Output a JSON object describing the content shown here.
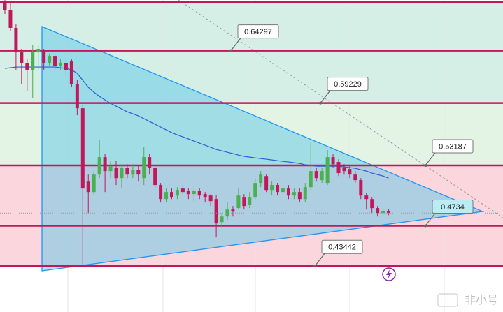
{
  "chart_data": {
    "type": "candlestick",
    "ylim": [
      0.39,
      0.692
    ],
    "up_color": "#4caf50",
    "down_color": "#c2185b",
    "level_color": "#c2185b",
    "ma_color": "#2f5fd0",
    "top_line": 0.69,
    "levels": [
      0.64297,
      0.59229,
      0.53187,
      0.4734,
      0.43442
    ],
    "open": [
      0.6886,
      0.6819,
      0.665,
      0.6413,
      0.6312,
      0.6244,
      0.6413,
      0.6433,
      0.6312,
      0.6379,
      0.6278,
      0.6312,
      0.6325,
      0.6109,
      0.5872,
      0.5162,
      0.5061,
      0.523,
      0.5399,
      0.5264,
      0.5298,
      0.5196,
      0.5298,
      0.523,
      0.5277,
      0.5196,
      0.5399,
      0.5298,
      0.5129,
      0.4993,
      0.5061,
      0.5027,
      0.5095,
      0.5074,
      0.5041,
      0.5074,
      0.5041,
      0.5027,
      0.4993,
      0.477,
      0.4824,
      0.4892,
      0.4906,
      0.5014,
      0.4939,
      0.5014,
      0.5149,
      0.5216,
      0.5081,
      0.5129,
      0.5061,
      0.5095,
      0.5027,
      0.5061,
      0.4993,
      0.5108,
      0.5264,
      0.5176,
      0.5149,
      0.5399,
      0.5352,
      0.5298,
      0.5284,
      0.523,
      0.5176,
      0.5027,
      0.4993,
      0.4906,
      0.4858,
      0.4878
    ],
    "high": [
      0.692,
      0.6886,
      0.6683,
      0.6447,
      0.6345,
      0.6481,
      0.6481,
      0.6447,
      0.6393,
      0.6393,
      0.6345,
      0.6366,
      0.6345,
      0.6143,
      0.5906,
      0.523,
      0.5264,
      0.5568,
      0.5433,
      0.5365,
      0.5365,
      0.5331,
      0.5331,
      0.5331,
      0.5311,
      0.55,
      0.5433,
      0.5311,
      0.5149,
      0.5095,
      0.5095,
      0.5108,
      0.5129,
      0.5095,
      0.5095,
      0.5095,
      0.5061,
      0.5041,
      0.5027,
      0.4858,
      0.496,
      0.4926,
      0.5095,
      0.5041,
      0.5061,
      0.5196,
      0.5264,
      0.523,
      0.5162,
      0.5149,
      0.5129,
      0.5129,
      0.5095,
      0.5095,
      0.5149,
      0.5534,
      0.5298,
      0.5298,
      0.5467,
      0.5433,
      0.5379,
      0.5331,
      0.5311,
      0.5264,
      0.5196,
      0.5054,
      0.5014,
      0.4926,
      0.4906,
      0.4892
    ],
    "low": [
      0.6785,
      0.6616,
      0.6244,
      0.6109,
      0.6041,
      0.5974,
      0.6244,
      0.6244,
      0.6278,
      0.6244,
      0.6244,
      0.6176,
      0.6075,
      0.5805,
      0.4351,
      0.4858,
      0.5027,
      0.5196,
      0.5061,
      0.5196,
      0.5129,
      0.5095,
      0.5196,
      0.5196,
      0.5162,
      0.5129,
      0.523,
      0.5095,
      0.496,
      0.496,
      0.4993,
      0.4993,
      0.5027,
      0.4993,
      0.496,
      0.4993,
      0.496,
      0.4926,
      0.4622,
      0.4723,
      0.4791,
      0.4824,
      0.4892,
      0.4892,
      0.4906,
      0.4993,
      0.5108,
      0.5061,
      0.5027,
      0.5027,
      0.5027,
      0.4993,
      0.4993,
      0.496,
      0.496,
      0.5081,
      0.5162,
      0.5149,
      0.5129,
      0.5298,
      0.5216,
      0.523,
      0.5196,
      0.5149,
      0.4993,
      0.4892,
      0.4858,
      0.4824,
      0.4838,
      0.4838
    ],
    "close": [
      0.6819,
      0.665,
      0.6413,
      0.6312,
      0.6244,
      0.6413,
      0.6447,
      0.6312,
      0.6379,
      0.6278,
      0.6312,
      0.6244,
      0.6109,
      0.5872,
      0.5095,
      0.5061,
      0.523,
      0.5399,
      0.5264,
      0.5311,
      0.5196,
      0.5298,
      0.523,
      0.5277,
      0.523,
      0.5399,
      0.5298,
      0.5129,
      0.4993,
      0.5061,
      0.5014,
      0.5081,
      0.5061,
      0.5041,
      0.5074,
      0.5027,
      0.5014,
      0.4973,
      0.4757,
      0.4824,
      0.4892,
      0.4872,
      0.5027,
      0.4926,
      0.5014,
      0.5149,
      0.523,
      0.5081,
      0.5129,
      0.5061,
      0.5095,
      0.5027,
      0.5061,
      0.4993,
      0.5108,
      0.5264,
      0.5196,
      0.5264,
      0.5399,
      0.5331,
      0.5244,
      0.5264,
      0.523,
      0.5176,
      0.5027,
      0.4993,
      0.4906,
      0.4858,
      0.4878,
      0.4858
    ],
    "ma": [
      0.6258,
      0.6264,
      0.6271,
      0.6271,
      0.6271,
      0.6271,
      0.6271,
      0.6271,
      0.6271,
      0.6271,
      0.6264,
      0.6258,
      0.6244,
      0.621,
      0.6143,
      0.6075,
      0.6028,
      0.5987,
      0.5953,
      0.592,
      0.5892,
      0.5865,
      0.5838,
      0.5818,
      0.5798,
      0.5771,
      0.5744,
      0.5717,
      0.569,
      0.5663,
      0.5636,
      0.5615,
      0.5595,
      0.5575,
      0.5554,
      0.5534,
      0.5514,
      0.5494,
      0.5473,
      0.546,
      0.5446,
      0.5433,
      0.5419,
      0.5406,
      0.5399,
      0.5392,
      0.5385,
      0.5379,
      0.5372,
      0.5365,
      0.5358,
      0.5352,
      0.5345,
      0.5338,
      0.5325,
      0.5318,
      0.5311,
      0.5311,
      0.5311,
      0.5311,
      0.5311,
      0.5304,
      0.5298,
      0.5291,
      0.5277,
      0.5264,
      0.5244,
      0.523,
      0.5216,
      0.5196
    ],
    "watermark": "非小号"
  }
}
